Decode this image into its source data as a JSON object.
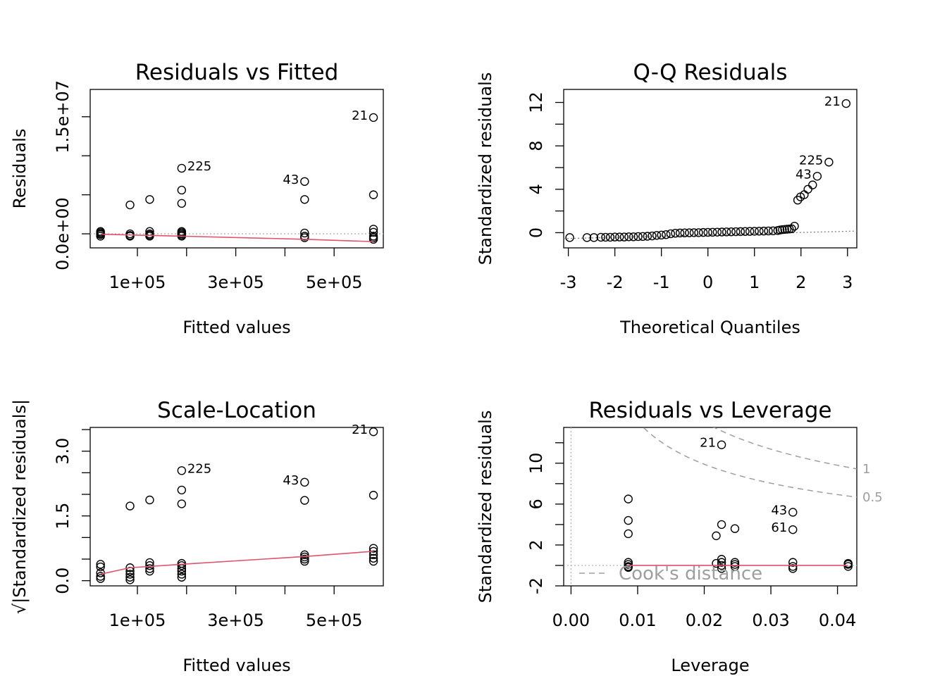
{
  "chart_data": [
    {
      "type": "scatter",
      "title": "Residuals vs Fitted",
      "xlabel": "Fitted values",
      "ylabel": "Residuals",
      "xlim": [
        4000,
        600000
      ],
      "ylim": [
        -1800000,
        18500000
      ],
      "xticks": [
        100000,
        200000,
        300000,
        400000,
        500000
      ],
      "xtick_labels": [
        "1e+05",
        "",
        "3e+05",
        "",
        "5e+05"
      ],
      "yticks": [
        0,
        5000000,
        10000000,
        15000000
      ],
      "ytick_labels": [
        "0.0e+00",
        "",
        "",
        "1.5e+07"
      ],
      "points": [
        [
          25000,
          300000
        ],
        [
          25000,
          0
        ],
        [
          25000,
          -300000
        ],
        [
          25000,
          -100000
        ],
        [
          25000,
          150000
        ],
        [
          85000,
          3700000
        ],
        [
          85000,
          0
        ],
        [
          85000,
          -200000
        ],
        [
          85000,
          -300000
        ],
        [
          125000,
          4400000
        ],
        [
          125000,
          300000
        ],
        [
          125000,
          0
        ],
        [
          125000,
          -300000
        ],
        [
          125000,
          -150000
        ],
        [
          190000,
          8400000
        ],
        [
          190000,
          5600000
        ],
        [
          190000,
          3900000
        ],
        [
          190000,
          300000
        ],
        [
          190000,
          150000
        ],
        [
          190000,
          0
        ],
        [
          190000,
          -150000
        ],
        [
          190000,
          -300000
        ],
        [
          440000,
          6700000
        ],
        [
          440000,
          4400000
        ],
        [
          440000,
          100000
        ],
        [
          440000,
          -300000
        ],
        [
          440000,
          -500000
        ],
        [
          580000,
          14900000
        ],
        [
          580000,
          5000000
        ],
        [
          580000,
          600000
        ],
        [
          580000,
          200000
        ],
        [
          580000,
          -300000
        ],
        [
          580000,
          -500000
        ],
        [
          580000,
          -700000
        ]
      ],
      "labels": [
        {
          "text": "21",
          "x": 580000,
          "y": 14900000,
          "side": "left"
        },
        {
          "text": "225",
          "x": 190000,
          "y": 8400000,
          "side": "right"
        },
        {
          "text": "43",
          "x": 440000,
          "y": 6700000,
          "side": "left"
        }
      ],
      "smooth": [
        [
          25000,
          -50000
        ],
        [
          85000,
          -150000
        ],
        [
          190000,
          -300000
        ],
        [
          440000,
          -700000
        ],
        [
          580000,
          -1000000
        ]
      ],
      "refline": {
        "type": "h",
        "value": 0
      },
      "colors": {
        "smooth": "#df536b",
        "ref": "#b3b3b3"
      }
    },
    {
      "type": "scatter",
      "title": "Q-Q Residuals",
      "xlabel": "Theoretical Quantiles",
      "ylabel": "Standardized residuals",
      "xlim": [
        -3.1,
        3.2
      ],
      "ylim": [
        -1.4,
        13.2
      ],
      "xticks": [
        -3,
        -2,
        -1,
        0,
        1,
        2,
        3
      ],
      "xtick_labels": [
        "-3",
        "-2",
        "-1",
        "0",
        "1",
        "2",
        "3"
      ],
      "yticks": [
        0,
        2,
        4,
        6,
        8,
        10,
        12
      ],
      "ytick_labels": [
        "0",
        "",
        "4",
        "",
        "8",
        "",
        "12"
      ],
      "points": [
        [
          2.97,
          11.9
        ],
        [
          2.6,
          6.5
        ],
        [
          2.35,
          5.2
        ],
        [
          2.25,
          4.4
        ],
        [
          2.15,
          4.0
        ],
        [
          2.07,
          3.5
        ],
        [
          1.99,
          3.3
        ],
        [
          1.93,
          3.0
        ],
        [
          1.86,
          0.6
        ],
        [
          -2.97,
          -0.45
        ],
        [
          -2.6,
          -0.45
        ],
        [
          -2.45,
          -0.45
        ],
        [
          -2.3,
          -0.42
        ],
        [
          -2.2,
          -0.42
        ],
        [
          -2.1,
          -0.42
        ],
        [
          -2.0,
          -0.4
        ],
        [
          -1.9,
          -0.4
        ],
        [
          -1.8,
          -0.4
        ],
        [
          -1.7,
          -0.38
        ],
        [
          -1.6,
          -0.38
        ],
        [
          -1.5,
          -0.36
        ],
        [
          -1.4,
          -0.35
        ],
        [
          -1.3,
          -0.33
        ],
        [
          -1.2,
          -0.3
        ],
        [
          -1.1,
          -0.25
        ],
        [
          -1.0,
          -0.22
        ],
        [
          -0.9,
          -0.18
        ],
        [
          -0.8,
          -0.1
        ],
        [
          -0.7,
          -0.05
        ],
        [
          -0.6,
          -0.03
        ],
        [
          -0.5,
          -0.02
        ],
        [
          -0.4,
          -0.01
        ],
        [
          -0.3,
          0.0
        ],
        [
          -0.2,
          0.0
        ],
        [
          -0.1,
          0.02
        ],
        [
          0.0,
          0.03
        ],
        [
          0.1,
          0.04
        ],
        [
          0.2,
          0.05
        ],
        [
          0.3,
          0.06
        ],
        [
          0.4,
          0.07
        ],
        [
          0.5,
          0.08
        ],
        [
          0.6,
          0.09
        ],
        [
          0.7,
          0.1
        ],
        [
          0.8,
          0.11
        ],
        [
          0.9,
          0.12
        ],
        [
          1.0,
          0.13
        ],
        [
          1.1,
          0.14
        ],
        [
          1.2,
          0.15
        ],
        [
          1.3,
          0.16
        ],
        [
          1.4,
          0.17
        ],
        [
          1.5,
          0.2
        ],
        [
          1.55,
          0.25
        ],
        [
          1.6,
          0.28
        ],
        [
          1.65,
          0.3
        ],
        [
          1.7,
          0.32
        ],
        [
          1.75,
          0.34
        ],
        [
          1.8,
          0.36
        ]
      ],
      "labels": [
        {
          "text": "21",
          "x": 2.97,
          "y": 11.9,
          "side": "left"
        },
        {
          "text": "225",
          "x": 2.6,
          "y": 6.5,
          "side": "left"
        },
        {
          "text": "43",
          "x": 2.35,
          "y": 5.2,
          "side": "left"
        }
      ],
      "refline": {
        "type": "line",
        "from": [
          -3.1,
          -0.55
        ],
        "to": [
          3.2,
          0.15
        ]
      },
      "colors": {
        "ref": "#808080"
      }
    },
    {
      "type": "scatter",
      "title": "Scale-Location",
      "xlabel": "Fitted values",
      "ylabel": "√|Standardized residuals|",
      "xlim": [
        4000,
        600000
      ],
      "ylim": [
        -0.12,
        3.55
      ],
      "xticks": [
        100000,
        200000,
        300000,
        400000,
        500000
      ],
      "xtick_labels": [
        "1e+05",
        "",
        "3e+05",
        "",
        "5e+05"
      ],
      "yticks": [
        0,
        0.5,
        1,
        1.5,
        2,
        2.5,
        3,
        3.5
      ],
      "ytick_labels": [
        "0.0",
        "",
        "",
        "1.5",
        "",
        "",
        "3.0",
        ""
      ],
      "points": [
        [
          25000,
          0.38
        ],
        [
          25000,
          0.32
        ],
        [
          25000,
          0.18
        ],
        [
          25000,
          0.1
        ],
        [
          25000,
          0.05
        ],
        [
          85000,
          1.73
        ],
        [
          85000,
          0.3
        ],
        [
          85000,
          0.22
        ],
        [
          85000,
          0.15
        ],
        [
          85000,
          0.08
        ],
        [
          85000,
          0.02
        ],
        [
          125000,
          1.87
        ],
        [
          125000,
          0.42
        ],
        [
          125000,
          0.35
        ],
        [
          125000,
          0.28
        ],
        [
          125000,
          0.22
        ],
        [
          190000,
          2.55
        ],
        [
          190000,
          2.1
        ],
        [
          190000,
          1.78
        ],
        [
          190000,
          0.4
        ],
        [
          190000,
          0.35
        ],
        [
          190000,
          0.28
        ],
        [
          190000,
          0.22
        ],
        [
          190000,
          0.15
        ],
        [
          190000,
          0.08
        ],
        [
          440000,
          2.28
        ],
        [
          440000,
          1.86
        ],
        [
          440000,
          0.6
        ],
        [
          440000,
          0.55
        ],
        [
          440000,
          0.5
        ],
        [
          440000,
          0.45
        ],
        [
          580000,
          3.45
        ],
        [
          580000,
          1.98
        ],
        [
          580000,
          0.75
        ],
        [
          580000,
          0.68
        ],
        [
          580000,
          0.6
        ],
        [
          580000,
          0.52
        ],
        [
          580000,
          0.45
        ]
      ],
      "labels": [
        {
          "text": "21",
          "x": 580000,
          "y": 3.45,
          "side": "left"
        },
        {
          "text": "225",
          "x": 190000,
          "y": 2.55,
          "side": "right"
        },
        {
          "text": "43",
          "x": 440000,
          "y": 2.28,
          "side": "left"
        }
      ],
      "smooth": [
        [
          25000,
          0.15
        ],
        [
          85000,
          0.3
        ],
        [
          190000,
          0.38
        ],
        [
          440000,
          0.56
        ],
        [
          580000,
          0.68
        ]
      ],
      "colors": {
        "smooth": "#df536b"
      }
    },
    {
      "type": "scatter",
      "title": "Residuals vs Leverage",
      "xlabel": "Leverage",
      "ylabel": "Standardized residuals",
      "xlim": [
        -0.0011,
        0.0429
      ],
      "ylim": [
        -2.0,
        13.5
      ],
      "xticks": [
        0.0,
        0.01,
        0.02,
        0.03,
        0.04
      ],
      "xtick_labels": [
        "0.00",
        "0.01",
        "0.02",
        "0.03",
        "0.04"
      ],
      "yticks": [
        -2,
        0,
        2,
        4,
        6,
        8,
        10,
        12
      ],
      "ytick_labels": [
        "-2",
        "",
        "2",
        "",
        "6",
        "",
        "10",
        ""
      ],
      "points": [
        [
          0.0086,
          6.5
        ],
        [
          0.0086,
          4.4
        ],
        [
          0.0086,
          3.1
        ],
        [
          0.0086,
          0.3
        ],
        [
          0.0086,
          0.1
        ],
        [
          0.0086,
          -0.1
        ],
        [
          0.0086,
          -0.2
        ],
        [
          0.0218,
          2.9
        ],
        [
          0.0226,
          11.8
        ],
        [
          0.0226,
          4.0
        ],
        [
          0.0226,
          0.6
        ],
        [
          0.0226,
          0.3
        ],
        [
          0.0226,
          0.0
        ],
        [
          0.0226,
          -0.3
        ],
        [
          0.0218,
          0.2
        ],
        [
          0.0246,
          3.6
        ],
        [
          0.0246,
          0.3
        ],
        [
          0.0246,
          0.1
        ],
        [
          0.0246,
          -0.1
        ],
        [
          0.0333,
          5.2
        ],
        [
          0.0333,
          3.5
        ],
        [
          0.0333,
          0.3
        ],
        [
          0.0333,
          -0.1
        ],
        [
          0.0333,
          -0.3
        ],
        [
          0.0416,
          0.2
        ],
        [
          0.0416,
          0.1
        ],
        [
          0.0416,
          -0.1
        ]
      ],
      "labels": [
        {
          "text": "21",
          "x": 0.0226,
          "y": 11.8,
          "side": "left"
        },
        {
          "text": "43",
          "x": 0.0333,
          "y": 5.2,
          "side": "left"
        },
        {
          "text": "61",
          "x": 0.0333,
          "y": 3.5,
          "side": "left"
        }
      ],
      "smooth": [
        [
          0.0086,
          0.0
        ],
        [
          0.0226,
          0.0
        ],
        [
          0.0333,
          0.0
        ],
        [
          0.0416,
          0.0
        ]
      ],
      "cooks": {
        "p": 4,
        "levels": [
          0.5,
          1
        ],
        "level_labels": [
          "0.5",
          "1"
        ]
      },
      "legend": {
        "text": "Cook's distance",
        "position": "bottom-left"
      },
      "colors": {
        "smooth": "#df536b",
        "ref": "#b3b3b3",
        "cooks": "#9e9e9e"
      }
    }
  ]
}
